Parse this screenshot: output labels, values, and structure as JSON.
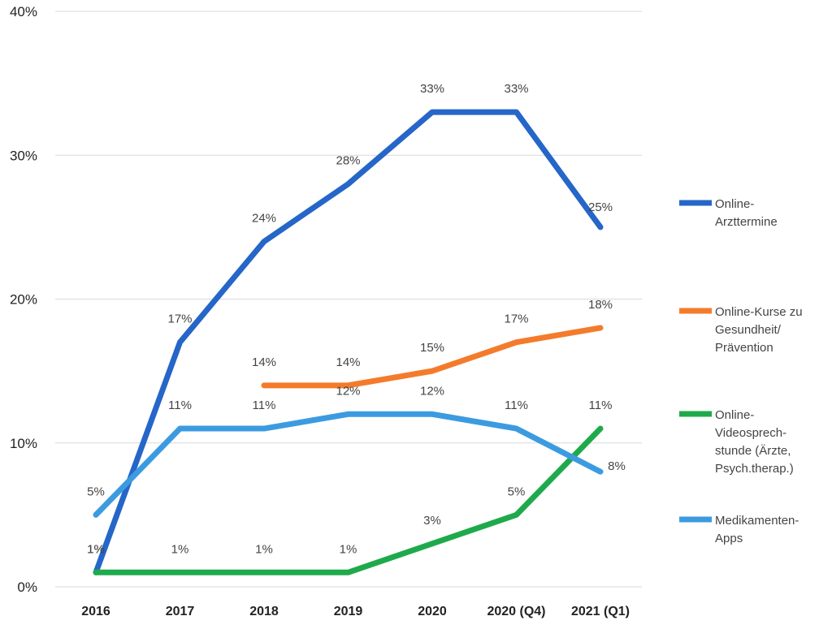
{
  "chart_data": {
    "type": "line",
    "categories": [
      "2016",
      "2017",
      "2018",
      "2019",
      "2020",
      "2020 (Q4)",
      "2021 (Q1)"
    ],
    "y_ticks": [
      "0%",
      "10%",
      "20%",
      "30%",
      "40%"
    ],
    "ylim": [
      0,
      40
    ],
    "grid": true,
    "legend_position": "right",
    "series": [
      {
        "name_lines": [
          "Online-",
          "Arzttermine"
        ],
        "color": "#2566C8",
        "values": [
          1,
          17,
          24,
          28,
          33,
          33,
          25
        ],
        "labels": [
          "1%",
          "17%",
          "24%",
          "28%",
          "33%",
          "33%",
          "25%"
        ]
      },
      {
        "name_lines": [
          "Online-Kurse zu",
          "Gesundheit/",
          "Prävention"
        ],
        "color": "#F47B2B",
        "values": [
          null,
          null,
          14,
          14,
          15,
          17,
          18
        ],
        "labels": [
          null,
          null,
          "14%",
          "14%",
          "15%",
          "17%",
          "18%"
        ]
      },
      {
        "name_lines": [
          "Online-",
          "Videosprech-",
          "stunde (Ärzte,",
          "Psych.therap.)"
        ],
        "color": "#1EAA4B",
        "values": [
          1,
          1,
          1,
          1,
          3,
          5,
          11
        ],
        "labels": [
          "1%",
          "1%",
          "1%",
          "1%",
          "3%",
          "5%",
          "11%"
        ]
      },
      {
        "name_lines": [
          "Medikamenten-",
          "Apps"
        ],
        "color": "#3C9BE0",
        "values": [
          5,
          11,
          11,
          12,
          12,
          11,
          8
        ],
        "labels": [
          "5%",
          "11%",
          "11%",
          "12%",
          "12%",
          "11%",
          "8%"
        ]
      }
    ]
  }
}
